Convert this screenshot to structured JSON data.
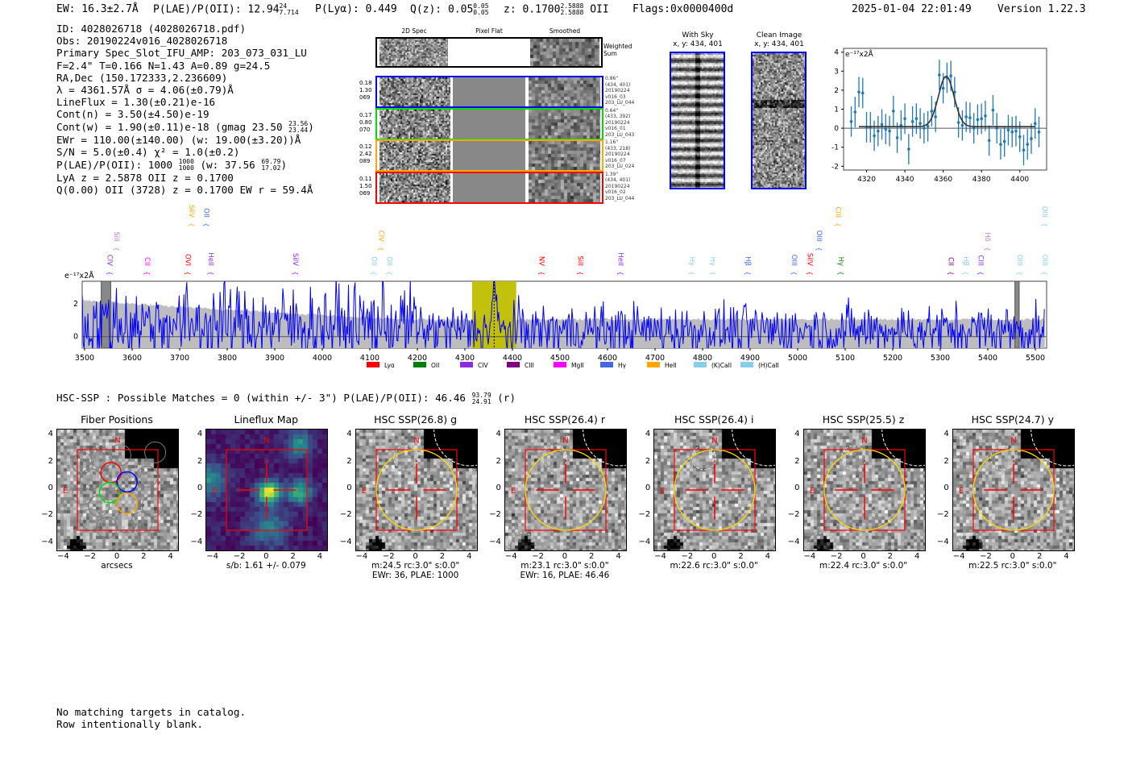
{
  "header": {
    "ew": "EW: 16.3±2.7Å",
    "plae_label": "P(LAE)/P(OII): 12.94",
    "plae_hi": "24",
    "plae_lo": "7.714",
    "plya": "P(Lyα): 0.449",
    "qz_label": "Q(z): 0.05",
    "qz_hi": "0.05",
    "qz_lo": "0.05",
    "z_label": "z: 0.1700",
    "z_hi": "2.5888",
    "z_lo": "2.5888",
    "z_line": "OII",
    "flags": "Flags:0x0000400d",
    "timestamp": "2025-01-04 22:01:49",
    "version": "Version 1.22.3"
  },
  "info": {
    "id": "ID: 4028026718 (4028026718.pdf)",
    "obs": "Obs: 20190224v016_4028026718",
    "primary": "Primary Spec_Slot_IFU_AMP: 203_073_031_LU",
    "params": "F=2.4\"  T=0.166  N=1.43  A=0.89  g=24.5",
    "radec": "RA,Dec (150.172333,2.236609)",
    "lambda": "λ = 4361.57Å   σ = 4.06(±0.79)Å",
    "lineflux": "LineFlux = 1.30(±0.21)e-16",
    "contn": "Cont(n) = 3.50(±4.50)e-19",
    "contw": "Cont(w) = 1.90(±0.11)e-18 (gmag 23.50",
    "contw_hi": "23.56",
    "contw_lo": "23.44",
    "contw_end": ")",
    "ewr": "EWr = 110.00(±140.00) (w: 19.00(±3.20))Å",
    "sn": "S/N = 5.0(±0.4)  χ² = 1.0(±0.2)",
    "plae": "P(LAE)/P(OII): 1000",
    "plae_hi": "1000",
    "plae_lo": "1000",
    "plae_w": "(w: 37.56",
    "plae_w_hi": "69.79",
    "plae_w_lo": "17.02",
    "plae_end": ")",
    "lya_z": "LyA z = 2.5878  OII z = 0.1700",
    "q": "Q(0.00) OII (3728) z = 0.1700  EW r = 59.4Å"
  },
  "spec2d": {
    "columns": [
      "2D Spec",
      "Pixel Flat",
      "Smoothed"
    ],
    "weighted_label": "Weighted Sum",
    "rows": [
      {
        "color": "#0000ff",
        "left": [
          "0.18",
          "1.30",
          "069"
        ],
        "right": [
          "0.86\"",
          "(434, 401)",
          "20190224",
          "v016_03",
          "203_LU_044"
        ]
      },
      {
        "color": "#00dd00",
        "left": [
          "0.17",
          "0.80",
          "070"
        ],
        "right": [
          "0.64\"",
          "(433, 392)",
          "20190224",
          "v016_01",
          "203_LU_043"
        ]
      },
      {
        "color": "#ffa500",
        "left": [
          "0.12",
          "2.42",
          "089"
        ],
        "right": [
          "1.16\"",
          "(433, 218)",
          "20190224",
          "v016_07",
          "203_LU_024"
        ]
      },
      {
        "color": "#ff0000",
        "left": [
          "0.11",
          "1.50",
          "069"
        ],
        "right": [
          "1.39\"",
          "(434, 401)",
          "20190224",
          "v016_02",
          "203_LU_044"
        ]
      }
    ]
  },
  "stamps": [
    {
      "title": "With Sky",
      "coords": "x, y: 434, 401"
    },
    {
      "title": "Clean Image",
      "coords": "x, y: 434, 401"
    }
  ],
  "chart_data": [
    {
      "type": "scatter",
      "title": "",
      "ylabel": "e⁻¹⁷x2Å",
      "xlim": [
        4308,
        4414
      ],
      "ylim": [
        -2.2,
        4.2
      ],
      "xticks": [
        4320,
        4340,
        4360,
        4380,
        4400
      ],
      "yticks": [
        -2,
        -1,
        0,
        1,
        2,
        3,
        4
      ],
      "x": [
        4312,
        4314,
        4316,
        4318,
        4320,
        4322,
        4324,
        4326,
        4328,
        4330,
        4332,
        4334,
        4336,
        4338,
        4340,
        4342,
        4344,
        4346,
        4348,
        4350,
        4352,
        4354,
        4356,
        4358,
        4360,
        4362,
        4364,
        4366,
        4368,
        4370,
        4372,
        4374,
        4376,
        4378,
        4380,
        4382,
        4384,
        4386,
        4388,
        4390,
        4392,
        4394,
        4396,
        4398,
        4400,
        4402,
        4404,
        4406,
        4408,
        4410
      ],
      "y": [
        0.35,
        0.85,
        1.9,
        1.85,
        0.05,
        0.05,
        -0.4,
        -0.15,
        0.2,
        -0.05,
        -0.15,
        0.9,
        -0.5,
        0.15,
        0.5,
        -1.1,
        0.35,
        0.5,
        0.25,
        0.0,
        0.1,
        0.9,
        0.6,
        2.8,
        2.1,
        2.65,
        2.75,
        1.9,
        0.3,
        0.15,
        0.6,
        0.55,
        0.0,
        0.45,
        0.5,
        0.65,
        -0.65,
        0.95,
        0.0,
        -0.85,
        -0.7,
        -0.1,
        -0.2,
        -0.15,
        -0.45,
        -1.15,
        -0.85,
        -0.55,
        0.25,
        -0.2
      ],
      "yerr": 0.8,
      "fit": {
        "center": 4361.57,
        "sigma": 4.06,
        "amplitude": 2.65,
        "continuum": 0.08,
        "range": [
          4316,
          4408
        ]
      }
    },
    {
      "type": "line",
      "title": "",
      "ylabel": "e⁻¹⁷x2Å",
      "xlim": [
        3495,
        5520
      ],
      "ylim": [
        -0.7,
        3.37
      ],
      "xticks": [
        3500,
        3600,
        3700,
        3800,
        3900,
        4000,
        4100,
        4200,
        4300,
        4400,
        4500,
        4600,
        4700,
        4800,
        4900,
        5000,
        5100,
        5200,
        5300,
        5400,
        5500
      ],
      "yticks": [
        0,
        2
      ],
      "highlight": [
        4315,
        4408
      ],
      "line_center": 4361.57,
      "masked": [
        [
          3535,
          3555
        ],
        [
          5457,
          5466
        ]
      ],
      "lines": [
        {
          "name": "CIV",
          "w": 3543,
          "color": "#8b2be2",
          "row": 0
        },
        {
          "name": "SiII",
          "w": 3558,
          "color": "#b57edc",
          "row": 0
        },
        {
          "name": "CII",
          "w": 3622,
          "color": "#ff00ff",
          "row": 0
        },
        {
          "name": "OVI",
          "w": 3708,
          "color": "#ff0000",
          "row": 0
        },
        {
          "name": "HeII",
          "w": 3756,
          "color": "#8b2be2",
          "row": 0
        },
        {
          "name": "SiIV",
          "w": 3934,
          "color": "#8b2be2",
          "row": 0
        },
        {
          "name": "OII",
          "w": 4099,
          "color": "#87ceeb",
          "row": 0
        },
        {
          "name": "CIV",
          "w": 4114,
          "color": "#ffa500",
          "row": 0
        },
        {
          "name": "OII",
          "w": 4131,
          "color": "#87ceeb",
          "row": 0
        },
        {
          "name": "NV",
          "w": 4452,
          "color": "#ff0000",
          "row": 0
        },
        {
          "name": "SiII",
          "w": 4533,
          "color": "#ff0000",
          "row": 0
        },
        {
          "name": "HeII",
          "w": 4618,
          "color": "#8b2be2",
          "row": 0
        },
        {
          "name": "Hγ",
          "w": 4768,
          "color": "#87ceeb",
          "row": 0
        },
        {
          "name": "Hγ",
          "w": 4812,
          "color": "#87ceeb",
          "row": 0
        },
        {
          "name": "Hβ",
          "w": 4886,
          "color": "#4169e1",
          "row": 0
        },
        {
          "name": "OIII",
          "w": 4983,
          "color": "#4169e1",
          "row": 0
        },
        {
          "name": "SiIV",
          "w": 5016,
          "color": "#ff0000",
          "row": 0
        },
        {
          "name": "OIII",
          "w": 5036,
          "color": "#4169e1",
          "row": 0
        },
        {
          "name": "Hγ",
          "w": 5081,
          "color": "#008000",
          "row": 0
        },
        {
          "name": "CII",
          "w": 5313,
          "color": "#800080",
          "row": 0
        },
        {
          "name": "Hβ",
          "w": 5344,
          "color": "#87ceeb",
          "row": 0
        },
        {
          "name": "CIII",
          "w": 5375,
          "color": "#8b2be2",
          "row": 0
        },
        {
          "name": "Hδ",
          "w": 5390,
          "color": "#b57edc",
          "row": 0
        },
        {
          "name": "OIII",
          "w": 5458,
          "color": "#87ceeb",
          "row": 0
        },
        {
          "name": "OIII",
          "w": 5510,
          "color": "#87ceeb",
          "row": 0
        },
        {
          "name": "SiIV",
          "w": 3715,
          "color": "#ffa500",
          "row": 1
        },
        {
          "name": "OII",
          "w": 3747,
          "color": "#4169e1",
          "row": 1
        },
        {
          "name": "CIII",
          "w": 5075,
          "color": "#ffa500",
          "row": 1
        },
        {
          "name": "OIII",
          "w": 5510,
          "color": "#87ceeb",
          "row": 1
        }
      ],
      "legend": [
        {
          "name": "Lyα",
          "color": "#ff0000"
        },
        {
          "name": "OII",
          "color": "#008000"
        },
        {
          "name": "CIV",
          "color": "#8a2be2"
        },
        {
          "name": "CIII",
          "color": "#800080"
        },
        {
          "name": "MgII",
          "color": "#ff00ff"
        },
        {
          "name": "Hγ",
          "color": "#4169e1"
        },
        {
          "name": "HeII",
          "color": "#ffa500"
        },
        {
          "name": "(K)CaII",
          "color": "#87ceeb"
        },
        {
          "name": "(H)CaII",
          "color": "#87ceeb"
        }
      ],
      "legend_position": "bottom-center"
    }
  ],
  "hsc": {
    "summary": "HSC-SSP : Possible Matches = 0 (within +/- 3\")  P(LAE)/P(OII): 46.46",
    "summary_hi": "93.79",
    "summary_lo": "24.91",
    "summary_end": "(r)",
    "ticks": [
      "−4",
      "−2",
      "0",
      "2",
      "4"
    ],
    "north": "N",
    "east": "E",
    "panels": [
      {
        "title": "Fiber Positions",
        "caption1": "arcsecs",
        "caption2": "",
        "kind": "fibers"
      },
      {
        "title": "Lineflux Map",
        "caption1": "s/b: 1.61 +/- 0.079",
        "caption2": "",
        "kind": "flux"
      },
      {
        "title": "HSC SSP(26.8) g",
        "caption1": "m:24.5 rc:3.0\"  s:0.0\"",
        "caption2": "EWr: 36, PLAE: 1000",
        "kind": "hsc"
      },
      {
        "title": "HSC SSP(26.4) r",
        "caption1": "m:23.1 rc:3.0\"  s:0.0\"",
        "caption2": "EWr: 16, PLAE: 46.46",
        "kind": "hsc"
      },
      {
        "title": "HSC SSP(26.4) i",
        "caption1": "m:22.6 rc:3.0\"  s:0.0\"",
        "caption2": "",
        "kind": "hsc"
      },
      {
        "title": "HSC SSP(25.5) z",
        "caption1": "m:22.4 rc:3.0\"  s:0.0\"",
        "caption2": "",
        "kind": "hsc"
      },
      {
        "title": "HSC SSP(24.7) y",
        "caption1": "m:22.5 rc:3.0\"  s:0.0\"",
        "caption2": "",
        "kind": "hsc"
      }
    ]
  },
  "footer": {
    "line1": "No matching targets in catalog.",
    "line2": "Row intentionally blank."
  }
}
